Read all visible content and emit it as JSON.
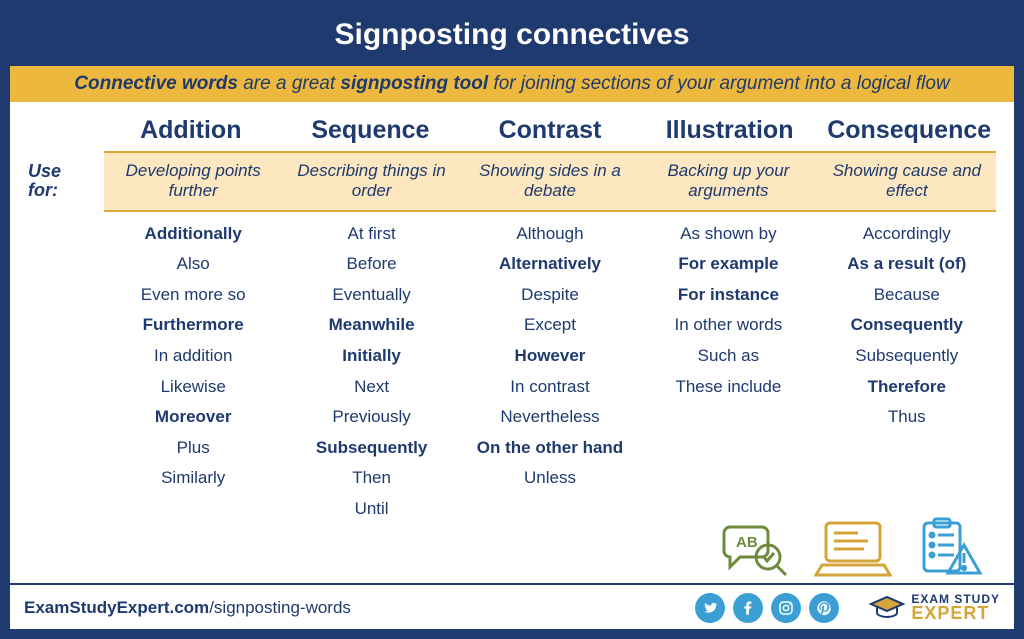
{
  "colors": {
    "frame": "#1e3a6e",
    "text": "#1e3a6e",
    "banner_bg": "#edb83e",
    "usage_bg": "#fce7c0",
    "usage_border": "#e2a93a",
    "white": "#ffffff",
    "social": "#3b9fd6",
    "gold": "#d6a53a",
    "icon_green": "#6e8b3d",
    "icon_yellow": "#d6a53a",
    "icon_blue": "#3b9fd6"
  },
  "title": "Signposting connectives",
  "banner": {
    "part1": "Connective words",
    "part2": " are a great ",
    "part3": "signposting tool",
    "part4": " for joining sections of your argument into a logical flow"
  },
  "use_for_label": "Use for:",
  "columns": [
    {
      "header": "Addition",
      "usage": "Developing points further",
      "words": [
        {
          "t": "Additionally",
          "b": true
        },
        {
          "t": "Also",
          "b": false
        },
        {
          "t": "Even more so",
          "b": false
        },
        {
          "t": "Furthermore",
          "b": true
        },
        {
          "t": "In addition",
          "b": false
        },
        {
          "t": "Likewise",
          "b": false
        },
        {
          "t": "Moreover",
          "b": true
        },
        {
          "t": "Plus",
          "b": false
        },
        {
          "t": "Similarly",
          "b": false
        }
      ]
    },
    {
      "header": "Sequence",
      "usage": "Describing things in order",
      "words": [
        {
          "t": "At first",
          "b": false
        },
        {
          "t": "Before",
          "b": false
        },
        {
          "t": "Eventually",
          "b": false
        },
        {
          "t": "Meanwhile",
          "b": true
        },
        {
          "t": "Initially",
          "b": true
        },
        {
          "t": "Next",
          "b": false
        },
        {
          "t": "Previously",
          "b": false
        },
        {
          "t": "Subsequently",
          "b": true
        },
        {
          "t": "Then",
          "b": false
        },
        {
          "t": "Until",
          "b": false
        }
      ]
    },
    {
      "header": "Contrast",
      "usage": "Showing sides in a debate",
      "words": [
        {
          "t": "Although",
          "b": false
        },
        {
          "t": "Alternatively",
          "b": true
        },
        {
          "t": "Despite",
          "b": false
        },
        {
          "t": "Except",
          "b": false
        },
        {
          "t": "However",
          "b": true
        },
        {
          "t": "In contrast",
          "b": false
        },
        {
          "t": "Nevertheless",
          "b": false
        },
        {
          "t": "On the other hand",
          "b": true
        },
        {
          "t": "Unless",
          "b": false
        }
      ]
    },
    {
      "header": "Illustration",
      "usage": "Backing up your arguments",
      "words": [
        {
          "t": "As shown by",
          "b": false
        },
        {
          "t": "For example",
          "b": true
        },
        {
          "t": "For instance",
          "b": true
        },
        {
          "t": "In other words",
          "b": false
        },
        {
          "t": "Such as",
          "b": false
        },
        {
          "t": "These include",
          "b": false
        }
      ]
    },
    {
      "header": "Consequence",
      "usage": "Showing cause and effect",
      "words": [
        {
          "t": "Accordingly",
          "b": false
        },
        {
          "t": "As a result (of)",
          "b": true
        },
        {
          "t": "Because",
          "b": false
        },
        {
          "t": "Consequently",
          "b": true
        },
        {
          "t": "Subsequently",
          "b": false
        },
        {
          "t": "Therefore",
          "b": true
        },
        {
          "t": "Thus",
          "b": false
        }
      ]
    }
  ],
  "footer": {
    "url_bold": "ExamStudyExpert.com",
    "url_rest": "/signposting-words",
    "socials": [
      "twitter",
      "facebook",
      "instagram",
      "pinterest"
    ],
    "logo_line1": "EXAM STUDY",
    "logo_line2": "EXPERT"
  }
}
